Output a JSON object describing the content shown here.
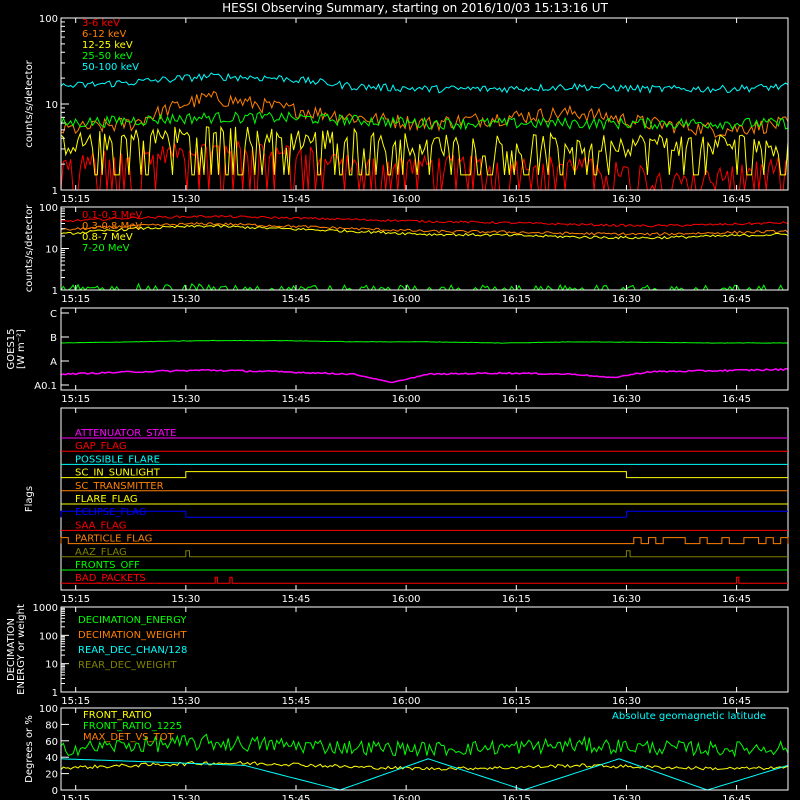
{
  "figure": {
    "title": "HESSI Observing Summary, starting on 2016/10/03 15:13:16 UT"
  },
  "time_axis": {
    "ticks": [
      "15:15",
      "15:30",
      "15:45",
      "16:00",
      "16:15",
      "16:30",
      "16:45"
    ],
    "tick_minutes": [
      2,
      17,
      32,
      47,
      62,
      77,
      92
    ],
    "range_minutes": [
      0,
      99
    ]
  },
  "chart_data": [
    {
      "id": "hxr",
      "type": "line",
      "ylabel": "counts/s/detector",
      "yscale": "log",
      "ylim": [
        1,
        100
      ],
      "yticks": [
        1,
        10,
        100
      ],
      "series": [
        {
          "name": "3-6 keV",
          "color": "#ff0000",
          "x": [
            0,
            10,
            20,
            30,
            40,
            50,
            60,
            70,
            80,
            90,
            99
          ],
          "values": [
            2,
            2.5,
            3,
            3,
            2,
            2,
            2,
            2,
            1.5,
            1.5,
            2
          ]
        },
        {
          "name": "6-12 keV",
          "color": "#ff8000",
          "x": [
            0,
            10,
            20,
            30,
            40,
            50,
            60,
            70,
            80,
            90,
            99
          ],
          "values": [
            5,
            6,
            12,
            9,
            7,
            6,
            7,
            8,
            6,
            5,
            6
          ]
        },
        {
          "name": "12-25 keV",
          "color": "#ffff00",
          "x": [
            0,
            10,
            20,
            30,
            40,
            50,
            60,
            70,
            80,
            90,
            99
          ],
          "values": [
            3.5,
            4,
            4.5,
            4,
            4,
            3.5,
            3.5,
            3.5,
            3.5,
            3.5,
            3.5
          ]
        },
        {
          "name": "25-50 keV",
          "color": "#00ff00",
          "x": [
            0,
            10,
            20,
            30,
            40,
            50,
            60,
            70,
            80,
            90,
            99
          ],
          "values": [
            6,
            6.5,
            7,
            7,
            6.5,
            6,
            6,
            6,
            6,
            6,
            6
          ]
        },
        {
          "name": "50-100 keV",
          "color": "#00ffff",
          "x": [
            0,
            10,
            20,
            30,
            40,
            50,
            60,
            70,
            80,
            90,
            99
          ],
          "values": [
            16,
            18,
            21,
            20,
            16,
            15,
            15,
            16,
            15,
            15,
            16
          ]
        }
      ]
    },
    {
      "id": "gamma",
      "type": "line",
      "ylabel": "counts/s/detector",
      "yscale": "log",
      "ylim": [
        1,
        100
      ],
      "yticks": [
        1,
        10,
        100
      ],
      "series": [
        {
          "name": "0.1-0.3 MeV",
          "color": "#ff0000",
          "x": [
            0,
            10,
            20,
            30,
            40,
            50,
            60,
            70,
            80,
            90,
            99
          ],
          "values": [
            45,
            55,
            60,
            55,
            50,
            45,
            42,
            38,
            35,
            38,
            42
          ]
        },
        {
          "name": "0.3-0.8 MeV",
          "color": "#ff8000",
          "x": [
            0,
            10,
            20,
            30,
            40,
            50,
            60,
            70,
            80,
            90,
            99
          ],
          "values": [
            28,
            35,
            40,
            35,
            30,
            26,
            25,
            23,
            22,
            24,
            26
          ]
        },
        {
          "name": "0.8-7 MeV",
          "color": "#ffff00",
          "x": [
            0,
            10,
            20,
            30,
            40,
            50,
            60,
            70,
            80,
            90,
            99
          ],
          "values": [
            22,
            30,
            35,
            30,
            26,
            22,
            21,
            19,
            18,
            20,
            22
          ]
        },
        {
          "name": "7-20 MeV",
          "color": "#00ff00",
          "x": [
            0,
            10,
            20,
            30,
            40,
            50,
            60,
            70,
            80,
            90,
            99
          ],
          "values": [
            1.2,
            1.3,
            1.3,
            1.2,
            1.2,
            1.2,
            1.2,
            1.2,
            1.2,
            1.2,
            1.2
          ]
        }
      ]
    },
    {
      "id": "goes",
      "type": "line",
      "ylabel": "GOES15",
      "ylabel2": "[W m⁻²]",
      "yticks": [
        "C",
        "B",
        "A",
        "A0.1"
      ],
      "series": [
        {
          "name": "",
          "color": "#00ff00",
          "x": [
            0,
            10,
            20,
            30,
            40,
            50,
            60,
            70,
            80,
            90,
            99
          ],
          "values": [
            1.75,
            1.8,
            1.85,
            1.85,
            1.8,
            1.8,
            1.75,
            1.8,
            1.78,
            1.75,
            1.75
          ]
        },
        {
          "name": "",
          "color": "#ff00ff",
          "x": [
            0,
            10,
            20,
            30,
            40,
            45,
            50,
            60,
            70,
            75,
            80,
            90,
            99
          ],
          "values": [
            0.45,
            0.55,
            0.62,
            0.55,
            0.45,
            0.1,
            0.45,
            0.5,
            0.45,
            0.3,
            0.55,
            0.6,
            0.65
          ]
        }
      ]
    },
    {
      "id": "flags",
      "type": "line",
      "ylabel": "Flags",
      "flags": [
        {
          "name": "ATTENUATOR_STATE",
          "color": "#ff00ff",
          "steps": []
        },
        {
          "name": "GAP_FLAG",
          "color": "#ff0000",
          "steps": []
        },
        {
          "name": "POSSIBLE_FLARE",
          "color": "#00ffff",
          "steps": []
        },
        {
          "name": "SC_IN_SUNLIGHT",
          "color": "#ffff00",
          "steps": [
            [
              17,
              1
            ],
            [
              77,
              0
            ]
          ]
        },
        {
          "name": "SC_TRANSMITTER",
          "color": "#ff8000",
          "steps": []
        },
        {
          "name": "FLARE_FLAG",
          "color": "#ffff00",
          "steps": []
        },
        {
          "name": "ECLIPSE_FLAG",
          "color": "#0000ff",
          "steps": [
            [
              0,
              1
            ],
            [
              17,
              0
            ],
            [
              77,
              1
            ]
          ]
        },
        {
          "name": "SAA_FLAG",
          "color": "#ff0000",
          "steps": []
        },
        {
          "name": "PARTICLE_FLAG",
          "color": "#ff8000",
          "steps": [
            [
              0,
              1
            ],
            [
              1,
              0
            ],
            [
              78,
              1
            ],
            [
              79,
              0
            ],
            [
              80,
              1
            ],
            [
              81,
              0
            ],
            [
              82,
              1
            ],
            [
              85,
              0
            ],
            [
              87,
              1
            ],
            [
              88,
              0
            ],
            [
              90,
              1
            ],
            [
              91,
              0
            ],
            [
              93,
              1
            ],
            [
              95,
              0
            ],
            [
              96,
              1
            ],
            [
              97,
              0
            ],
            [
              98,
              1
            ],
            [
              99,
              0
            ]
          ]
        },
        {
          "name": "AAZ_FLAG",
          "color": "#808000",
          "steps": [
            [
              17,
              1
            ],
            [
              17.5,
              0
            ],
            [
              77,
              1
            ],
            [
              77.5,
              0
            ]
          ]
        },
        {
          "name": "FRONTS_OFF",
          "color": "#00ff00",
          "steps": []
        },
        {
          "name": "BAD_PACKETS",
          "color": "#ff0000",
          "steps": [
            [
              21,
              1
            ],
            [
              21.3,
              0
            ],
            [
              23,
              1
            ],
            [
              23.3,
              0
            ],
            [
              92,
              1
            ],
            [
              92.3,
              0
            ]
          ]
        }
      ]
    },
    {
      "id": "decimation",
      "type": "line",
      "ylabel": "DECIMATION",
      "ylabel2": "ENERGY or weight",
      "yscale": "log",
      "ylim": [
        1,
        1000
      ],
      "yticks": [
        1,
        10,
        100,
        1000
      ],
      "series": [
        {
          "name": "DECIMATION_ENERGY",
          "color": "#00ff00",
          "x": [],
          "values": []
        },
        {
          "name": "DECIMATION_WEIGHT",
          "color": "#ff8000",
          "x": [],
          "values": []
        },
        {
          "name": "REAR_DEC_CHAN/128",
          "color": "#00ffff",
          "x": [],
          "values": []
        },
        {
          "name": "REAR_DEC_WEIGHT",
          "color": "#808000",
          "x": [],
          "values": []
        }
      ]
    },
    {
      "id": "ratio",
      "type": "line",
      "ylabel": "Degrees or %",
      "ylim": [
        0,
        100
      ],
      "yticks": [
        0,
        20,
        40,
        60,
        80,
        100
      ],
      "annotation": "Absolute geomagnetic latitude",
      "series": [
        {
          "name": "FRONT_RATIO",
          "color": "#ffff00",
          "x": [
            0,
            10,
            20,
            30,
            40,
            50,
            60,
            70,
            80,
            90,
            99
          ],
          "values": [
            27,
            30,
            33,
            32,
            28,
            26,
            27,
            30,
            28,
            26,
            27
          ]
        },
        {
          "name": "FRONT_RATIO_1225",
          "color": "#00ff00",
          "x": [
            0,
            10,
            20,
            30,
            40,
            50,
            60,
            70,
            80,
            90,
            99
          ],
          "values": [
            50,
            55,
            58,
            55,
            52,
            50,
            52,
            55,
            52,
            50,
            52
          ]
        },
        {
          "name": "MAX_DET_VS_TOT",
          "color": "#ff8000",
          "x": [
            0,
            99
          ],
          "values": [
            0,
            0
          ]
        },
        {
          "name": "",
          "color": "#00ffff",
          "x": [
            0,
            10,
            25,
            38,
            50,
            63,
            76,
            88,
            99
          ],
          "values": [
            38,
            35,
            30,
            0,
            38,
            0,
            38,
            0,
            30
          ]
        }
      ]
    }
  ]
}
